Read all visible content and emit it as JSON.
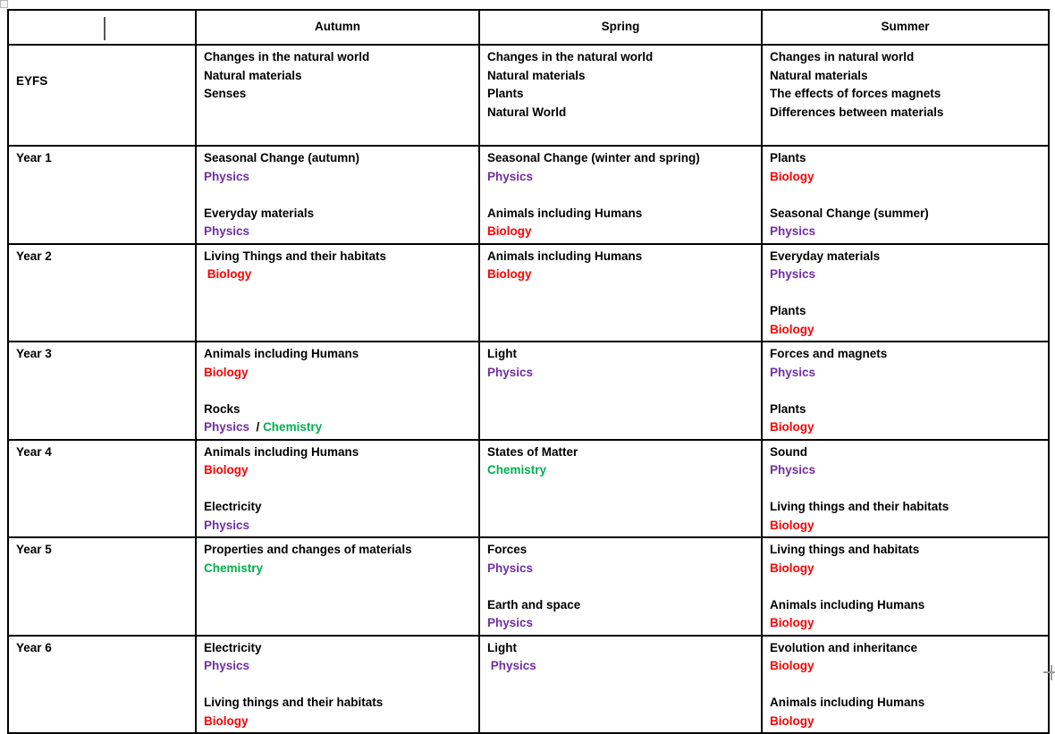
{
  "colors": {
    "physics": "#7030A0",
    "biology": "#FF0000",
    "chemistry": "#00B050",
    "text": "#000000",
    "border": "#000000"
  },
  "table": {
    "term_keys": [
      "autumn",
      "spring",
      "summer"
    ],
    "header": {
      "col0": "",
      "col1": "Autumn",
      "col2": "Spring",
      "col3": "Summer"
    },
    "rows": [
      {
        "id": "eyfs",
        "label": "EYFS",
        "cells": [
          {
            "lines": [
              [
                {
                  "t": "Changes in the natural world",
                  "c": "default"
                }
              ],
              [
                {
                  "t": "Natural materials",
                  "c": "default"
                }
              ],
              [
                {
                  "t": "Senses",
                  "c": "default"
                }
              ]
            ]
          },
          {
            "lines": [
              [
                {
                  "t": "Changes in the natural world",
                  "c": "default"
                }
              ],
              [
                {
                  "t": "Natural materials",
                  "c": "default"
                }
              ],
              [
                {
                  "t": "Plants",
                  "c": "default"
                }
              ],
              [
                {
                  "t": "Natural World",
                  "c": "default"
                }
              ]
            ]
          },
          {
            "lines": [
              [
                {
                  "t": "Changes in natural world",
                  "c": "default"
                }
              ],
              [
                {
                  "t": "Natural materials",
                  "c": "default"
                }
              ],
              [
                {
                  "t": "The effects of forces magnets",
                  "c": "default"
                }
              ],
              [
                {
                  "t": "Differences between materials",
                  "c": "default"
                }
              ]
            ]
          }
        ]
      },
      {
        "id": "year-1",
        "label": "Year 1",
        "cells": [
          {
            "lines": [
              [
                {
                  "t": "Seasonal Change (autumn)",
                  "c": "default"
                }
              ],
              [
                {
                  "t": "Physics",
                  "c": "physics"
                }
              ],
              [],
              [
                {
                  "t": "Everyday materials",
                  "c": "default"
                }
              ],
              [
                {
                  "t": "Physics",
                  "c": "physics"
                }
              ]
            ]
          },
          {
            "lines": [
              [
                {
                  "t": "Seasonal Change (winter and spring)",
                  "c": "default"
                }
              ],
              [
                {
                  "t": "Physics",
                  "c": "physics"
                }
              ],
              [],
              [
                {
                  "t": "Animals including Humans",
                  "c": "default"
                }
              ],
              [
                {
                  "t": "Biology",
                  "c": "biology"
                }
              ]
            ]
          },
          {
            "lines": [
              [
                {
                  "t": "Plants",
                  "c": "default"
                }
              ],
              [
                {
                  "t": "Biology",
                  "c": "biology"
                }
              ],
              [],
              [
                {
                  "t": "Seasonal Change (summer)",
                  "c": "default"
                }
              ],
              [
                {
                  "t": "Physics",
                  "c": "physics"
                }
              ]
            ]
          }
        ]
      },
      {
        "id": "year-2",
        "label": "Year 2",
        "cells": [
          {
            "lines": [
              [
                {
                  "t": "Living Things and their habitats",
                  "c": "default"
                }
              ],
              [
                {
                  "t": " Biology",
                  "c": "biology"
                }
              ]
            ]
          },
          {
            "lines": [
              [
                {
                  "t": "Animals including Humans",
                  "c": "default"
                }
              ],
              [
                {
                  "t": "Biology",
                  "c": "biology"
                }
              ]
            ]
          },
          {
            "lines": [
              [
                {
                  "t": "Everyday materials",
                  "c": "default"
                }
              ],
              [
                {
                  "t": "Physics",
                  "c": "physics"
                }
              ],
              [],
              [
                {
                  "t": "Plants",
                  "c": "default"
                }
              ],
              [
                {
                  "t": "Biology",
                  "c": "biology"
                }
              ]
            ]
          }
        ]
      },
      {
        "id": "year-3",
        "label": "Year 3",
        "cells": [
          {
            "lines": [
              [
                {
                  "t": "Animals including Humans",
                  "c": "default"
                }
              ],
              [
                {
                  "t": "Biology",
                  "c": "biology"
                }
              ],
              [],
              [
                {
                  "t": "Rocks",
                  "c": "default"
                }
              ],
              [
                {
                  "t": "Physics",
                  "c": "physics"
                },
                {
                  "t": "  / ",
                  "c": "default"
                },
                {
                  "t": "Chemistry",
                  "c": "chemistry"
                }
              ]
            ]
          },
          {
            "lines": [
              [
                {
                  "t": "Light",
                  "c": "default"
                }
              ],
              [
                {
                  "t": "Physics",
                  "c": "physics"
                }
              ]
            ]
          },
          {
            "lines": [
              [
                {
                  "t": "Forces and magnets",
                  "c": "default"
                }
              ],
              [
                {
                  "t": "Physics",
                  "c": "physics"
                }
              ],
              [],
              [
                {
                  "t": "Plants",
                  "c": "default"
                }
              ],
              [
                {
                  "t": "Biology",
                  "c": "biology"
                }
              ]
            ]
          }
        ]
      },
      {
        "id": "year-4",
        "label": "Year 4",
        "cells": [
          {
            "lines": [
              [
                {
                  "t": "Animals including Humans",
                  "c": "default"
                }
              ],
              [
                {
                  "t": "Biology",
                  "c": "biology"
                }
              ],
              [],
              [
                {
                  "t": "Electricity",
                  "c": "default"
                }
              ],
              [
                {
                  "t": "Physics",
                  "c": "physics"
                }
              ]
            ]
          },
          {
            "lines": [
              [
                {
                  "t": "States of Matter",
                  "c": "default"
                }
              ],
              [
                {
                  "t": "Chemistry",
                  "c": "chemistry"
                }
              ]
            ]
          },
          {
            "lines": [
              [
                {
                  "t": "Sound",
                  "c": "default"
                }
              ],
              [
                {
                  "t": "Physics",
                  "c": "physics"
                }
              ],
              [],
              [
                {
                  "t": "Living things and their habitats",
                  "c": "default"
                }
              ],
              [
                {
                  "t": "Biology",
                  "c": "biology"
                }
              ]
            ]
          }
        ]
      },
      {
        "id": "year-5",
        "label": "Year 5",
        "cells": [
          {
            "lines": [
              [
                {
                  "t": "Properties and changes of materials",
                  "c": "default"
                }
              ],
              [
                {
                  "t": "Chemistry",
                  "c": "chemistry"
                }
              ]
            ]
          },
          {
            "lines": [
              [
                {
                  "t": "Forces",
                  "c": "default"
                }
              ],
              [
                {
                  "t": "Physics",
                  "c": "physics"
                }
              ],
              [],
              [
                {
                  "t": "Earth and space",
                  "c": "default"
                }
              ],
              [
                {
                  "t": "Physics",
                  "c": "physics"
                }
              ]
            ]
          },
          {
            "lines": [
              [
                {
                  "t": "Living things and habitats",
                  "c": "default"
                }
              ],
              [
                {
                  "t": "Biology",
                  "c": "biology"
                }
              ],
              [],
              [
                {
                  "t": "Animals including Humans",
                  "c": "default"
                }
              ],
              [
                {
                  "t": "Biology",
                  "c": "biology"
                }
              ]
            ]
          }
        ]
      },
      {
        "id": "year-6",
        "label": "Year 6",
        "cells": [
          {
            "lines": [
              [
                {
                  "t": "Electricity",
                  "c": "default"
                }
              ],
              [
                {
                  "t": "Physics",
                  "c": "physics"
                }
              ],
              [],
              [
                {
                  "t": "Living things and their habitats",
                  "c": "default"
                }
              ],
              [
                {
                  "t": "Biology",
                  "c": "biology"
                }
              ]
            ]
          },
          {
            "lines": [
              [
                {
                  "t": "Light",
                  "c": "default"
                }
              ],
              [
                {
                  "t": " Physics",
                  "c": "physics"
                }
              ]
            ]
          },
          {
            "lines": [
              [
                {
                  "t": "Evolution and inheritance",
                  "c": "default"
                }
              ],
              [
                {
                  "t": "Biology",
                  "c": "biology"
                }
              ],
              [],
              [
                {
                  "t": "Animals including Humans",
                  "c": "default"
                }
              ],
              [
                {
                  "t": "Biology",
                  "c": "biology"
                }
              ]
            ]
          }
        ]
      }
    ]
  }
}
